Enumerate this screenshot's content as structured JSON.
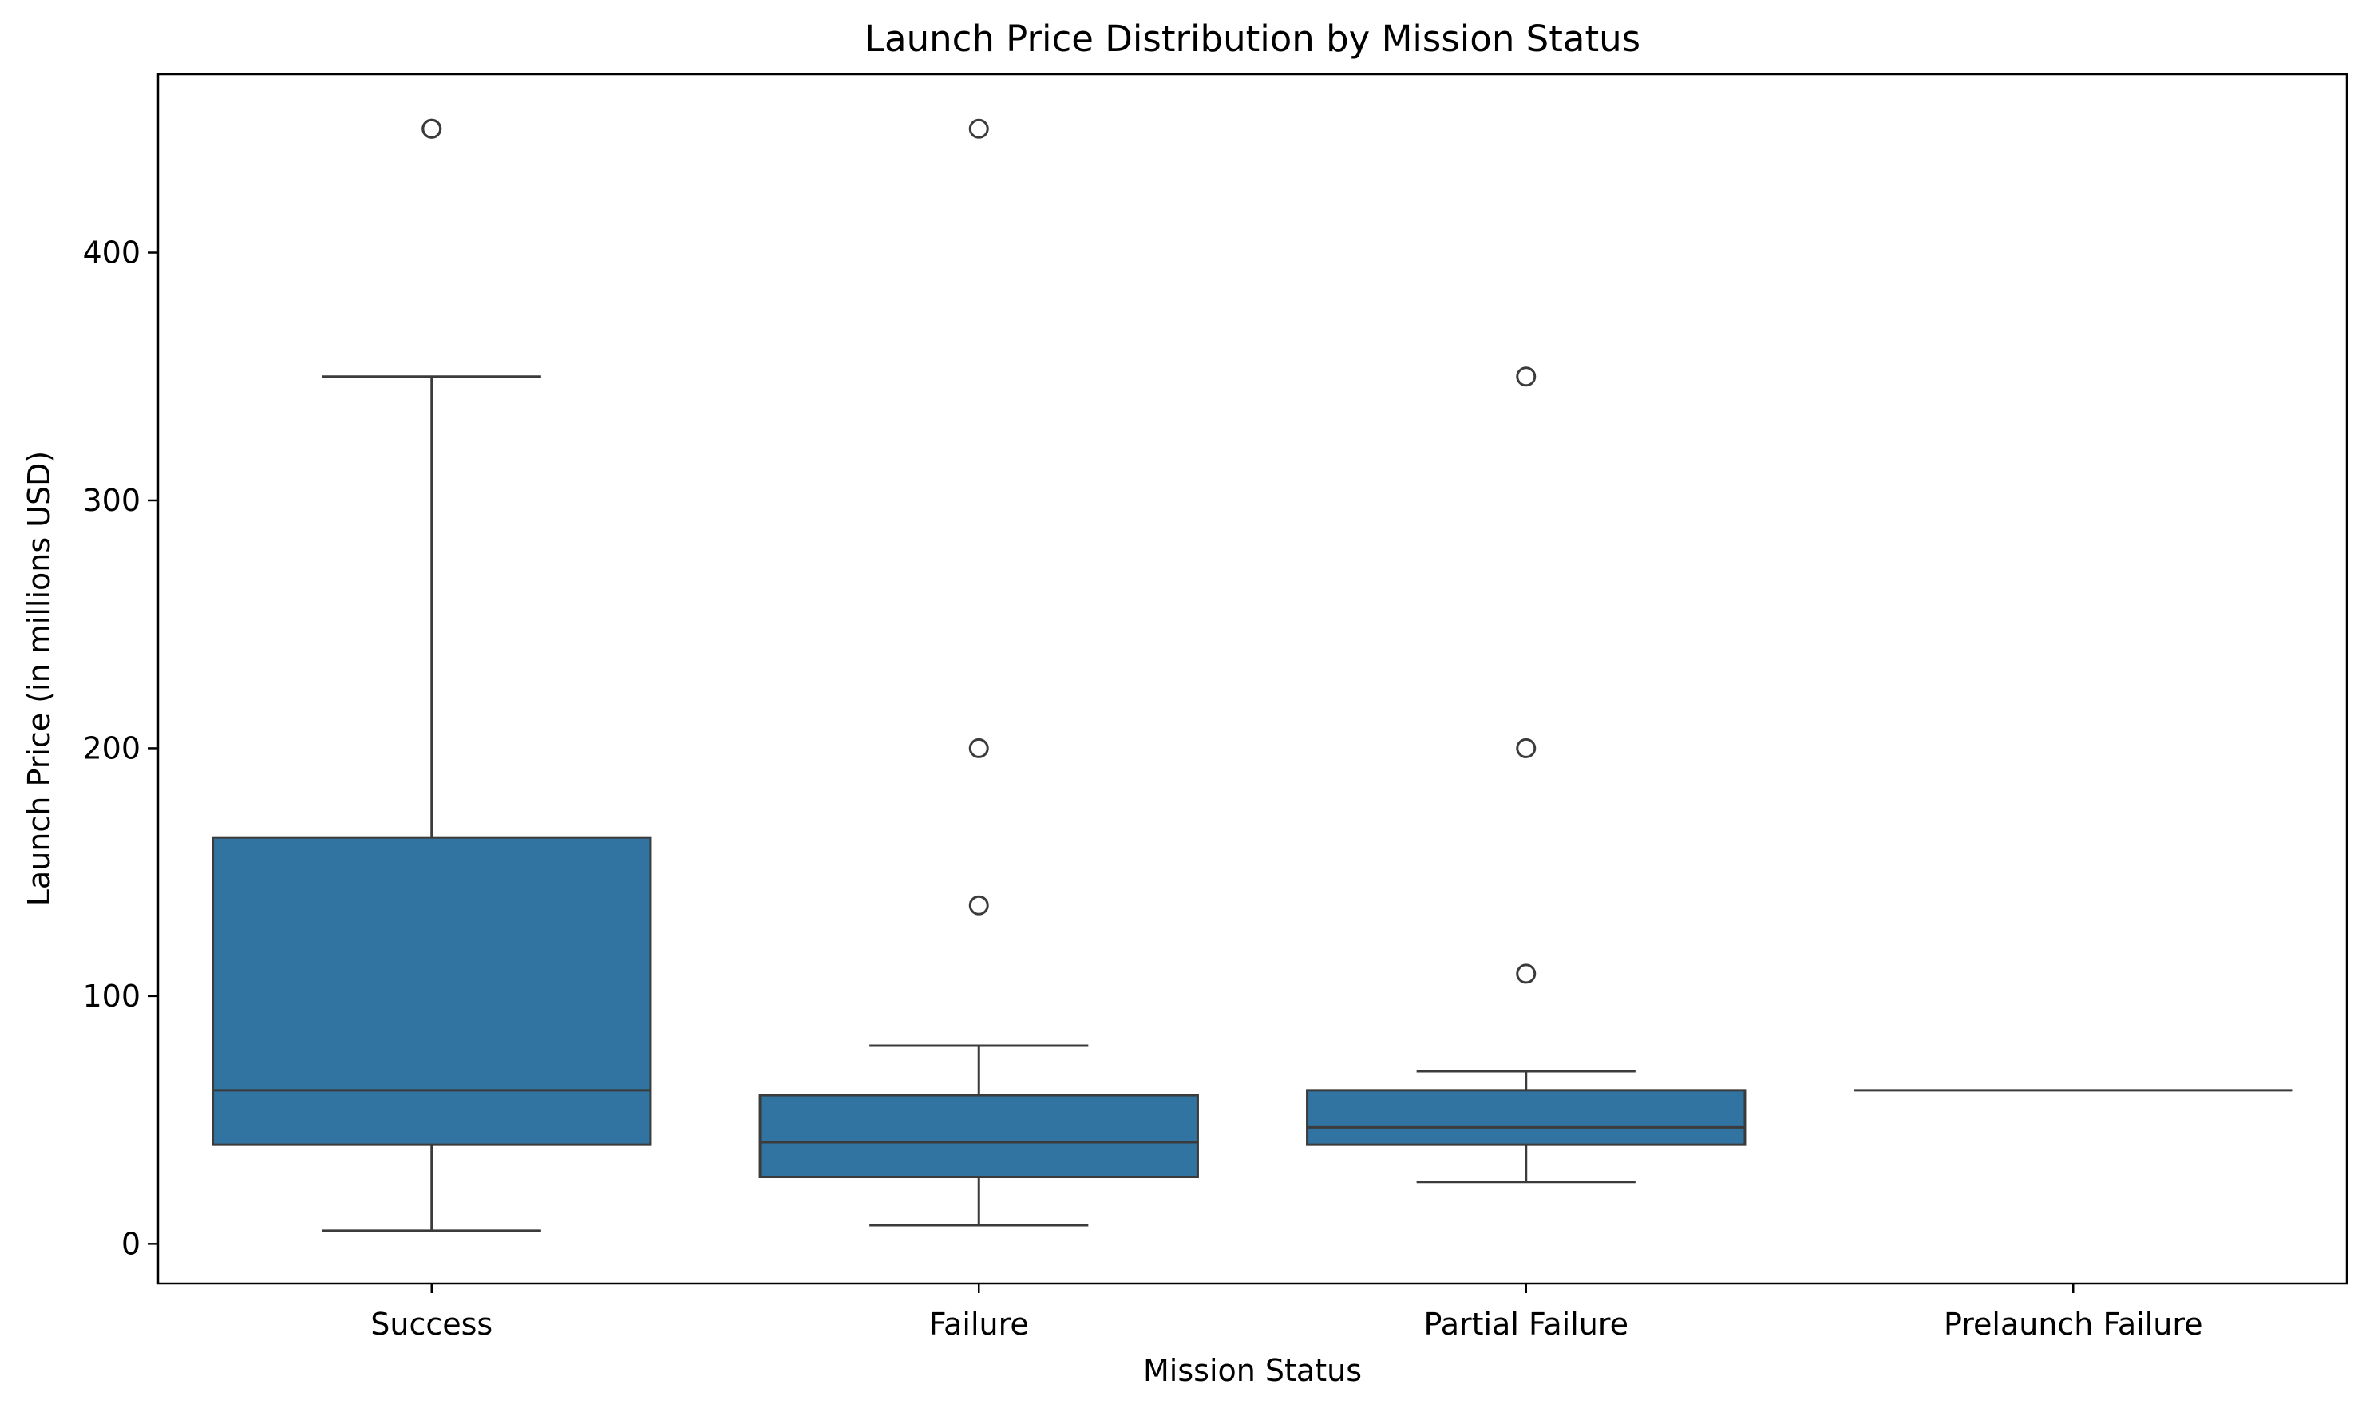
{
  "chart_data": {
    "type": "box",
    "title": "Launch Price Distribution by Mission Status",
    "xlabel": "Mission Status",
    "ylabel": "Launch Price (in millions USD)",
    "ylim": [
      -16,
      472
    ],
    "yticks": [
      0,
      100,
      200,
      300,
      400
    ],
    "grid": false,
    "box_color": "#3274a1",
    "line_color": "#3b3b3b",
    "categories": [
      "Success",
      "Failure",
      "Partial Failure",
      "Prelaunch Failure"
    ],
    "boxes": [
      {
        "category": "Success",
        "whisker_low": 5.3,
        "q1": 40,
        "median": 62,
        "q3": 164,
        "whisker_high": 350,
        "outliers": [
          450,
          450
        ]
      },
      {
        "category": "Failure",
        "whisker_low": 7.5,
        "q1": 27,
        "median": 41,
        "q3": 60,
        "whisker_high": 80,
        "outliers": [
          136.6,
          200,
          450
        ]
      },
      {
        "category": "Partial Failure",
        "whisker_low": 25,
        "q1": 40,
        "median": 47,
        "q3": 62,
        "whisker_high": 69.7,
        "outliers": [
          109,
          200,
          350
        ]
      },
      {
        "category": "Prelaunch Failure",
        "whisker_low": 62,
        "q1": 62,
        "median": 62,
        "q3": 62,
        "whisker_high": 62,
        "outliers": []
      }
    ]
  }
}
